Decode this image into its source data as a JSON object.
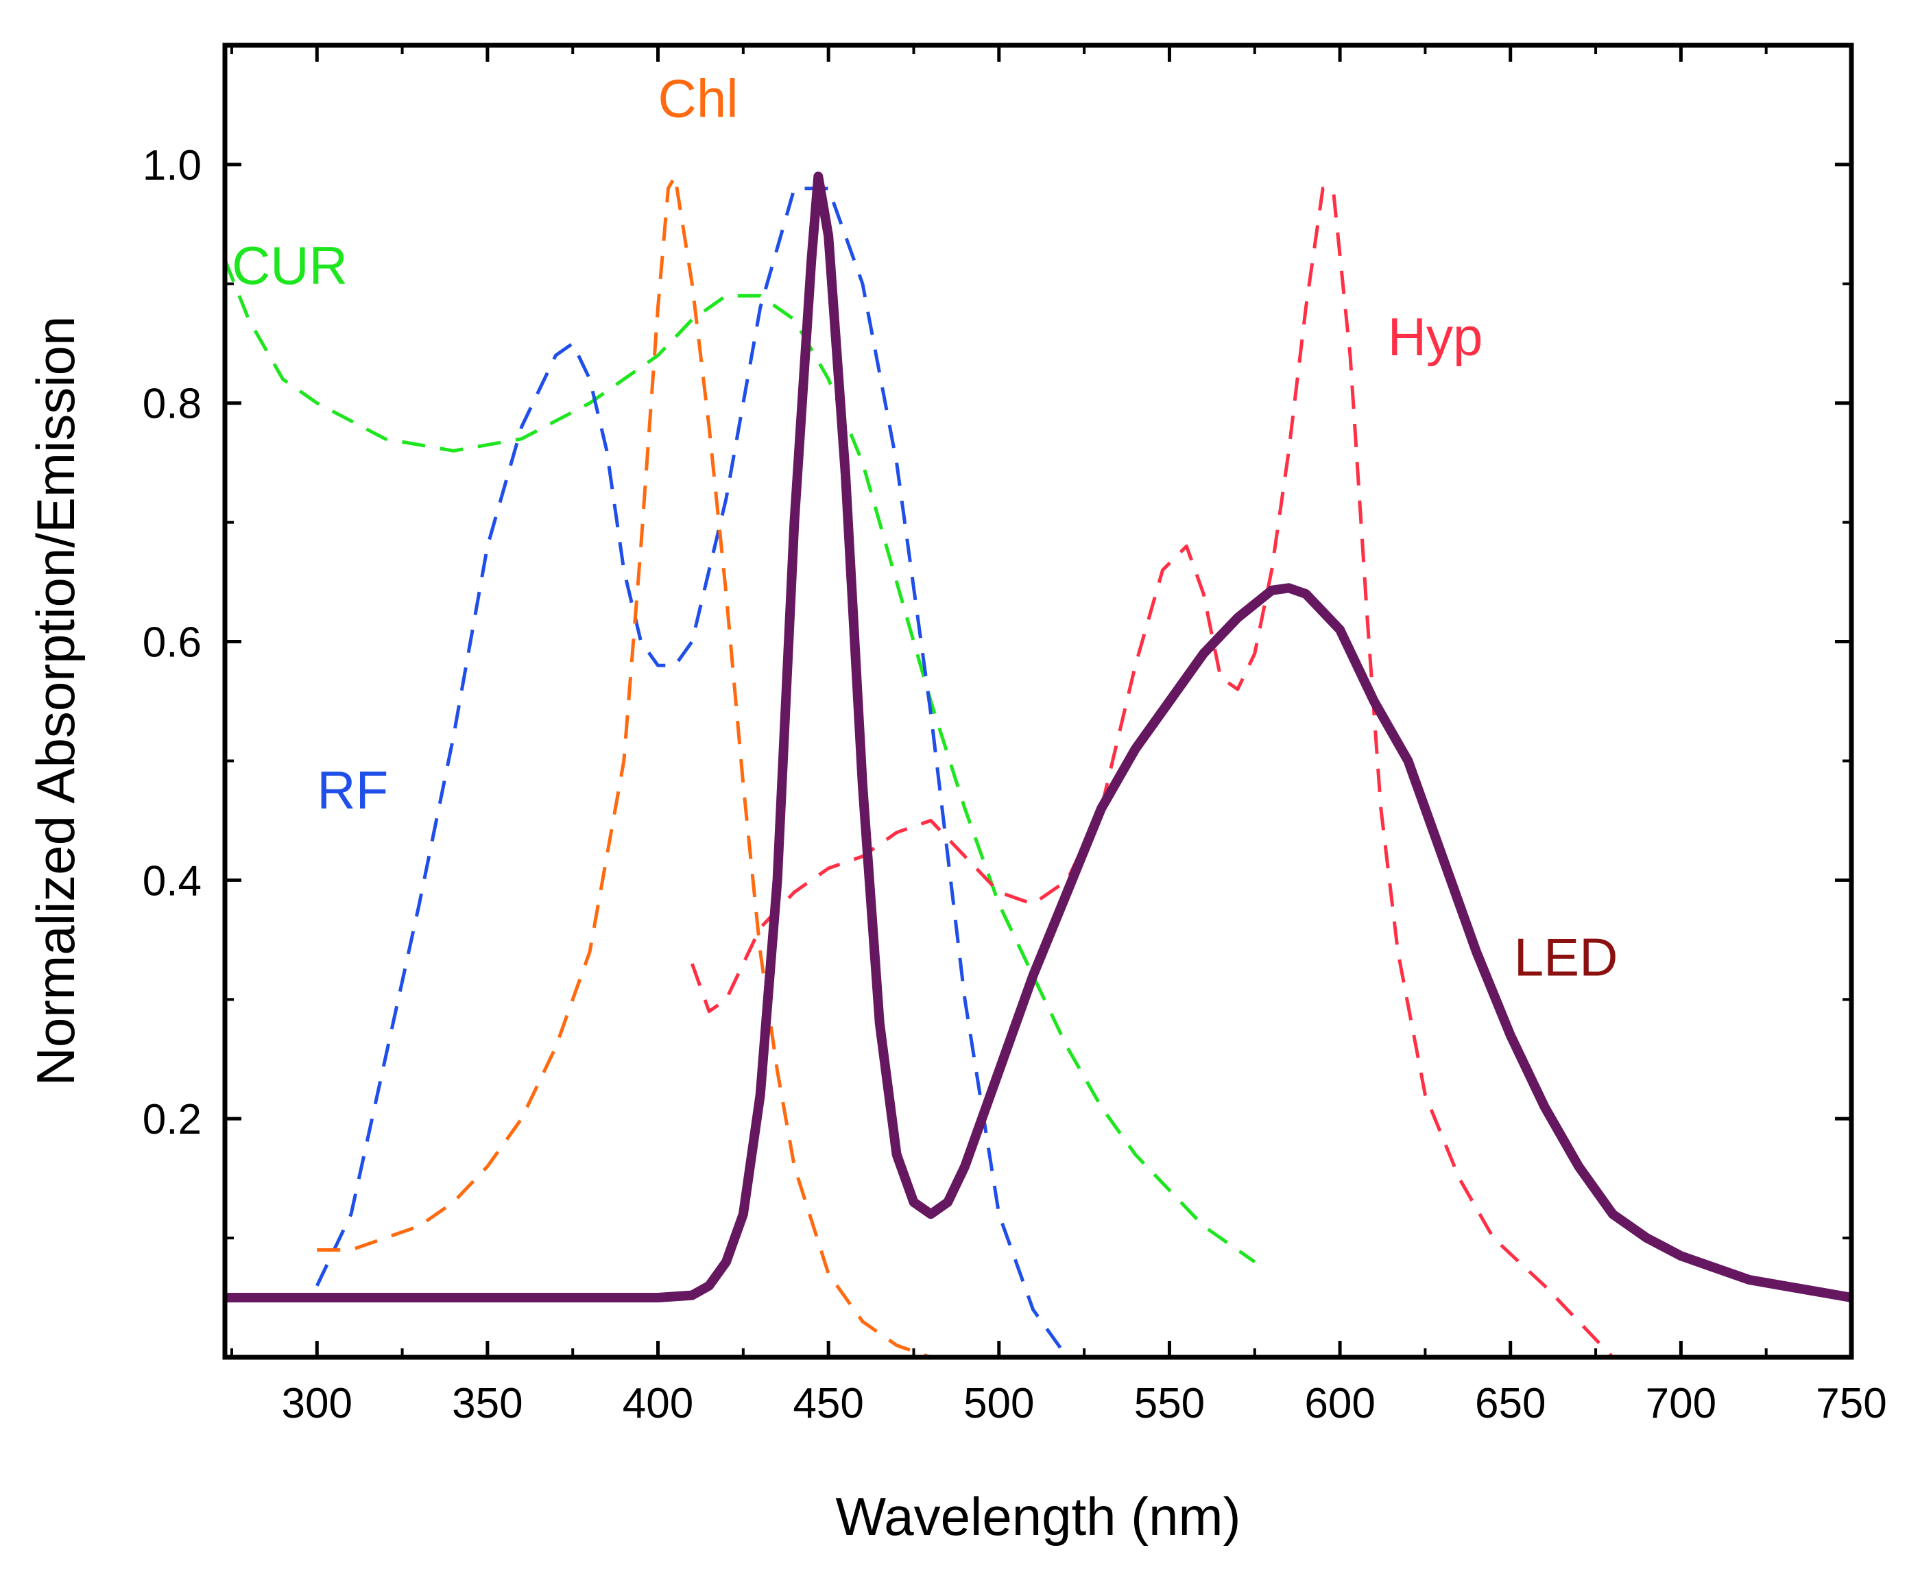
{
  "chart_data": {
    "type": "line",
    "title": "",
    "xlabel": "Wavelength (nm)",
    "ylabel": "Normalized Absorption/Emission",
    "xlim": [
      273,
      750
    ],
    "ylim": [
      0,
      1.1
    ],
    "grid": false,
    "x_ticks": [
      300,
      350,
      400,
      450,
      500,
      550,
      600,
      650,
      700,
      750
    ],
    "x_tick_labels": [
      "300",
      "350",
      "400",
      "450",
      "500",
      "550",
      "600",
      "650",
      "700",
      "750"
    ],
    "y_ticks": [
      0.2,
      0.4,
      0.6,
      0.8,
      1.0
    ],
    "y_tick_labels": [
      "0.2",
      "0.4",
      "0.6",
      "0.8",
      "1.0"
    ],
    "series": [
      {
        "name": "CUR",
        "label": "CUR",
        "color": "#1ee61e",
        "style": "dashed",
        "label_anchor": [
          275,
          0.9
        ],
        "points": [
          [
            273,
            0.92
          ],
          [
            280,
            0.87
          ],
          [
            290,
            0.82
          ],
          [
            300,
            0.8
          ],
          [
            320,
            0.77
          ],
          [
            340,
            0.76
          ],
          [
            360,
            0.77
          ],
          [
            380,
            0.8
          ],
          [
            400,
            0.84
          ],
          [
            410,
            0.87
          ],
          [
            420,
            0.89
          ],
          [
            430,
            0.89
          ],
          [
            440,
            0.87
          ],
          [
            450,
            0.82
          ],
          [
            460,
            0.75
          ],
          [
            470,
            0.65
          ],
          [
            480,
            0.55
          ],
          [
            490,
            0.46
          ],
          [
            500,
            0.38
          ],
          [
            510,
            0.32
          ],
          [
            520,
            0.26
          ],
          [
            530,
            0.21
          ],
          [
            540,
            0.17
          ],
          [
            550,
            0.14
          ],
          [
            560,
            0.11
          ],
          [
            570,
            0.09
          ],
          [
            575,
            0.08
          ]
        ]
      },
      {
        "name": "RF",
        "label": "RF",
        "color": "#1f4fe8",
        "style": "dashed",
        "label_anchor": [
          300,
          0.46
        ],
        "points": [
          [
            300,
            0.06
          ],
          [
            310,
            0.12
          ],
          [
            320,
            0.25
          ],
          [
            330,
            0.38
          ],
          [
            340,
            0.52
          ],
          [
            350,
            0.68
          ],
          [
            360,
            0.78
          ],
          [
            370,
            0.84
          ],
          [
            375,
            0.85
          ],
          [
            380,
            0.82
          ],
          [
            385,
            0.76
          ],
          [
            390,
            0.66
          ],
          [
            395,
            0.6
          ],
          [
            400,
            0.58
          ],
          [
            405,
            0.58
          ],
          [
            410,
            0.6
          ],
          [
            420,
            0.72
          ],
          [
            430,
            0.88
          ],
          [
            440,
            0.98
          ],
          [
            450,
            0.98
          ],
          [
            460,
            0.9
          ],
          [
            470,
            0.75
          ],
          [
            480,
            0.54
          ],
          [
            490,
            0.3
          ],
          [
            500,
            0.12
          ],
          [
            510,
            0.04
          ],
          [
            520,
            0.0
          ]
        ]
      },
      {
        "name": "Chl",
        "label": "Chl",
        "color": "#ff6a10",
        "style": "dashed",
        "label_anchor": [
          400,
          1.04
        ],
        "points": [
          [
            300,
            0.09
          ],
          [
            310,
            0.09
          ],
          [
            320,
            0.1
          ],
          [
            330,
            0.11
          ],
          [
            340,
            0.13
          ],
          [
            350,
            0.16
          ],
          [
            360,
            0.2
          ],
          [
            370,
            0.26
          ],
          [
            380,
            0.34
          ],
          [
            390,
            0.5
          ],
          [
            395,
            0.68
          ],
          [
            400,
            0.88
          ],
          [
            403,
            0.98
          ],
          [
            405,
            0.99
          ],
          [
            410,
            0.9
          ],
          [
            415,
            0.78
          ],
          [
            420,
            0.64
          ],
          [
            425,
            0.48
          ],
          [
            430,
            0.34
          ],
          [
            435,
            0.24
          ],
          [
            440,
            0.16
          ],
          [
            450,
            0.07
          ],
          [
            460,
            0.03
          ],
          [
            470,
            0.01
          ],
          [
            480,
            0.0
          ],
          [
            490,
            0.0
          ],
          [
            500,
            0.0
          ],
          [
            510,
            0.0
          ],
          [
            520,
            0.0
          ],
          [
            540,
            0.0
          ]
        ]
      },
      {
        "name": "Hyp",
        "label": "Hyp",
        "color": "#ff2f46",
        "style": "dashed",
        "label_anchor": [
          614,
          0.84
        ],
        "points": [
          [
            410,
            0.33
          ],
          [
            415,
            0.29
          ],
          [
            420,
            0.3
          ],
          [
            430,
            0.36
          ],
          [
            440,
            0.39
          ],
          [
            450,
            0.41
          ],
          [
            460,
            0.42
          ],
          [
            470,
            0.44
          ],
          [
            480,
            0.45
          ],
          [
            490,
            0.42
          ],
          [
            500,
            0.39
          ],
          [
            510,
            0.38
          ],
          [
            520,
            0.4
          ],
          [
            530,
            0.46
          ],
          [
            540,
            0.58
          ],
          [
            548,
            0.66
          ],
          [
            555,
            0.68
          ],
          [
            560,
            0.64
          ],
          [
            565,
            0.57
          ],
          [
            570,
            0.56
          ],
          [
            575,
            0.59
          ],
          [
            580,
            0.66
          ],
          [
            585,
            0.76
          ],
          [
            590,
            0.88
          ],
          [
            595,
            0.98
          ],
          [
            598,
            0.98
          ],
          [
            603,
            0.84
          ],
          [
            608,
            0.62
          ],
          [
            612,
            0.46
          ],
          [
            617,
            0.34
          ],
          [
            625,
            0.22
          ],
          [
            635,
            0.15
          ],
          [
            645,
            0.1
          ],
          [
            660,
            0.06
          ],
          [
            670,
            0.03
          ],
          [
            680,
            0.0
          ]
        ]
      },
      {
        "name": "LED",
        "label": "LED",
        "color": "#651760",
        "label_color": "#8b1010",
        "style": "solid",
        "label_anchor": [
          651,
          0.32
        ],
        "points": [
          [
            273,
            0.05
          ],
          [
            300,
            0.05
          ],
          [
            350,
            0.05
          ],
          [
            400,
            0.05
          ],
          [
            410,
            0.052
          ],
          [
            415,
            0.06
          ],
          [
            420,
            0.08
          ],
          [
            425,
            0.12
          ],
          [
            430,
            0.22
          ],
          [
            435,
            0.4
          ],
          [
            440,
            0.7
          ],
          [
            445,
            0.92
          ],
          [
            447,
            0.99
          ],
          [
            450,
            0.94
          ],
          [
            455,
            0.74
          ],
          [
            460,
            0.48
          ],
          [
            465,
            0.28
          ],
          [
            470,
            0.17
          ],
          [
            475,
            0.13
          ],
          [
            480,
            0.12
          ],
          [
            485,
            0.13
          ],
          [
            490,
            0.16
          ],
          [
            500,
            0.24
          ],
          [
            510,
            0.32
          ],
          [
            520,
            0.39
          ],
          [
            530,
            0.46
          ],
          [
            540,
            0.51
          ],
          [
            550,
            0.55
          ],
          [
            560,
            0.59
          ],
          [
            570,
            0.62
          ],
          [
            580,
            0.643
          ],
          [
            585,
            0.645
          ],
          [
            590,
            0.64
          ],
          [
            600,
            0.61
          ],
          [
            610,
            0.55
          ],
          [
            620,
            0.5
          ],
          [
            630,
            0.42
          ],
          [
            640,
            0.34
          ],
          [
            650,
            0.27
          ],
          [
            660,
            0.21
          ],
          [
            670,
            0.16
          ],
          [
            680,
            0.12
          ],
          [
            690,
            0.1
          ],
          [
            700,
            0.085
          ],
          [
            710,
            0.075
          ],
          [
            720,
            0.065
          ],
          [
            730,
            0.06
          ],
          [
            740,
            0.055
          ],
          [
            750,
            0.05
          ]
        ]
      }
    ]
  }
}
